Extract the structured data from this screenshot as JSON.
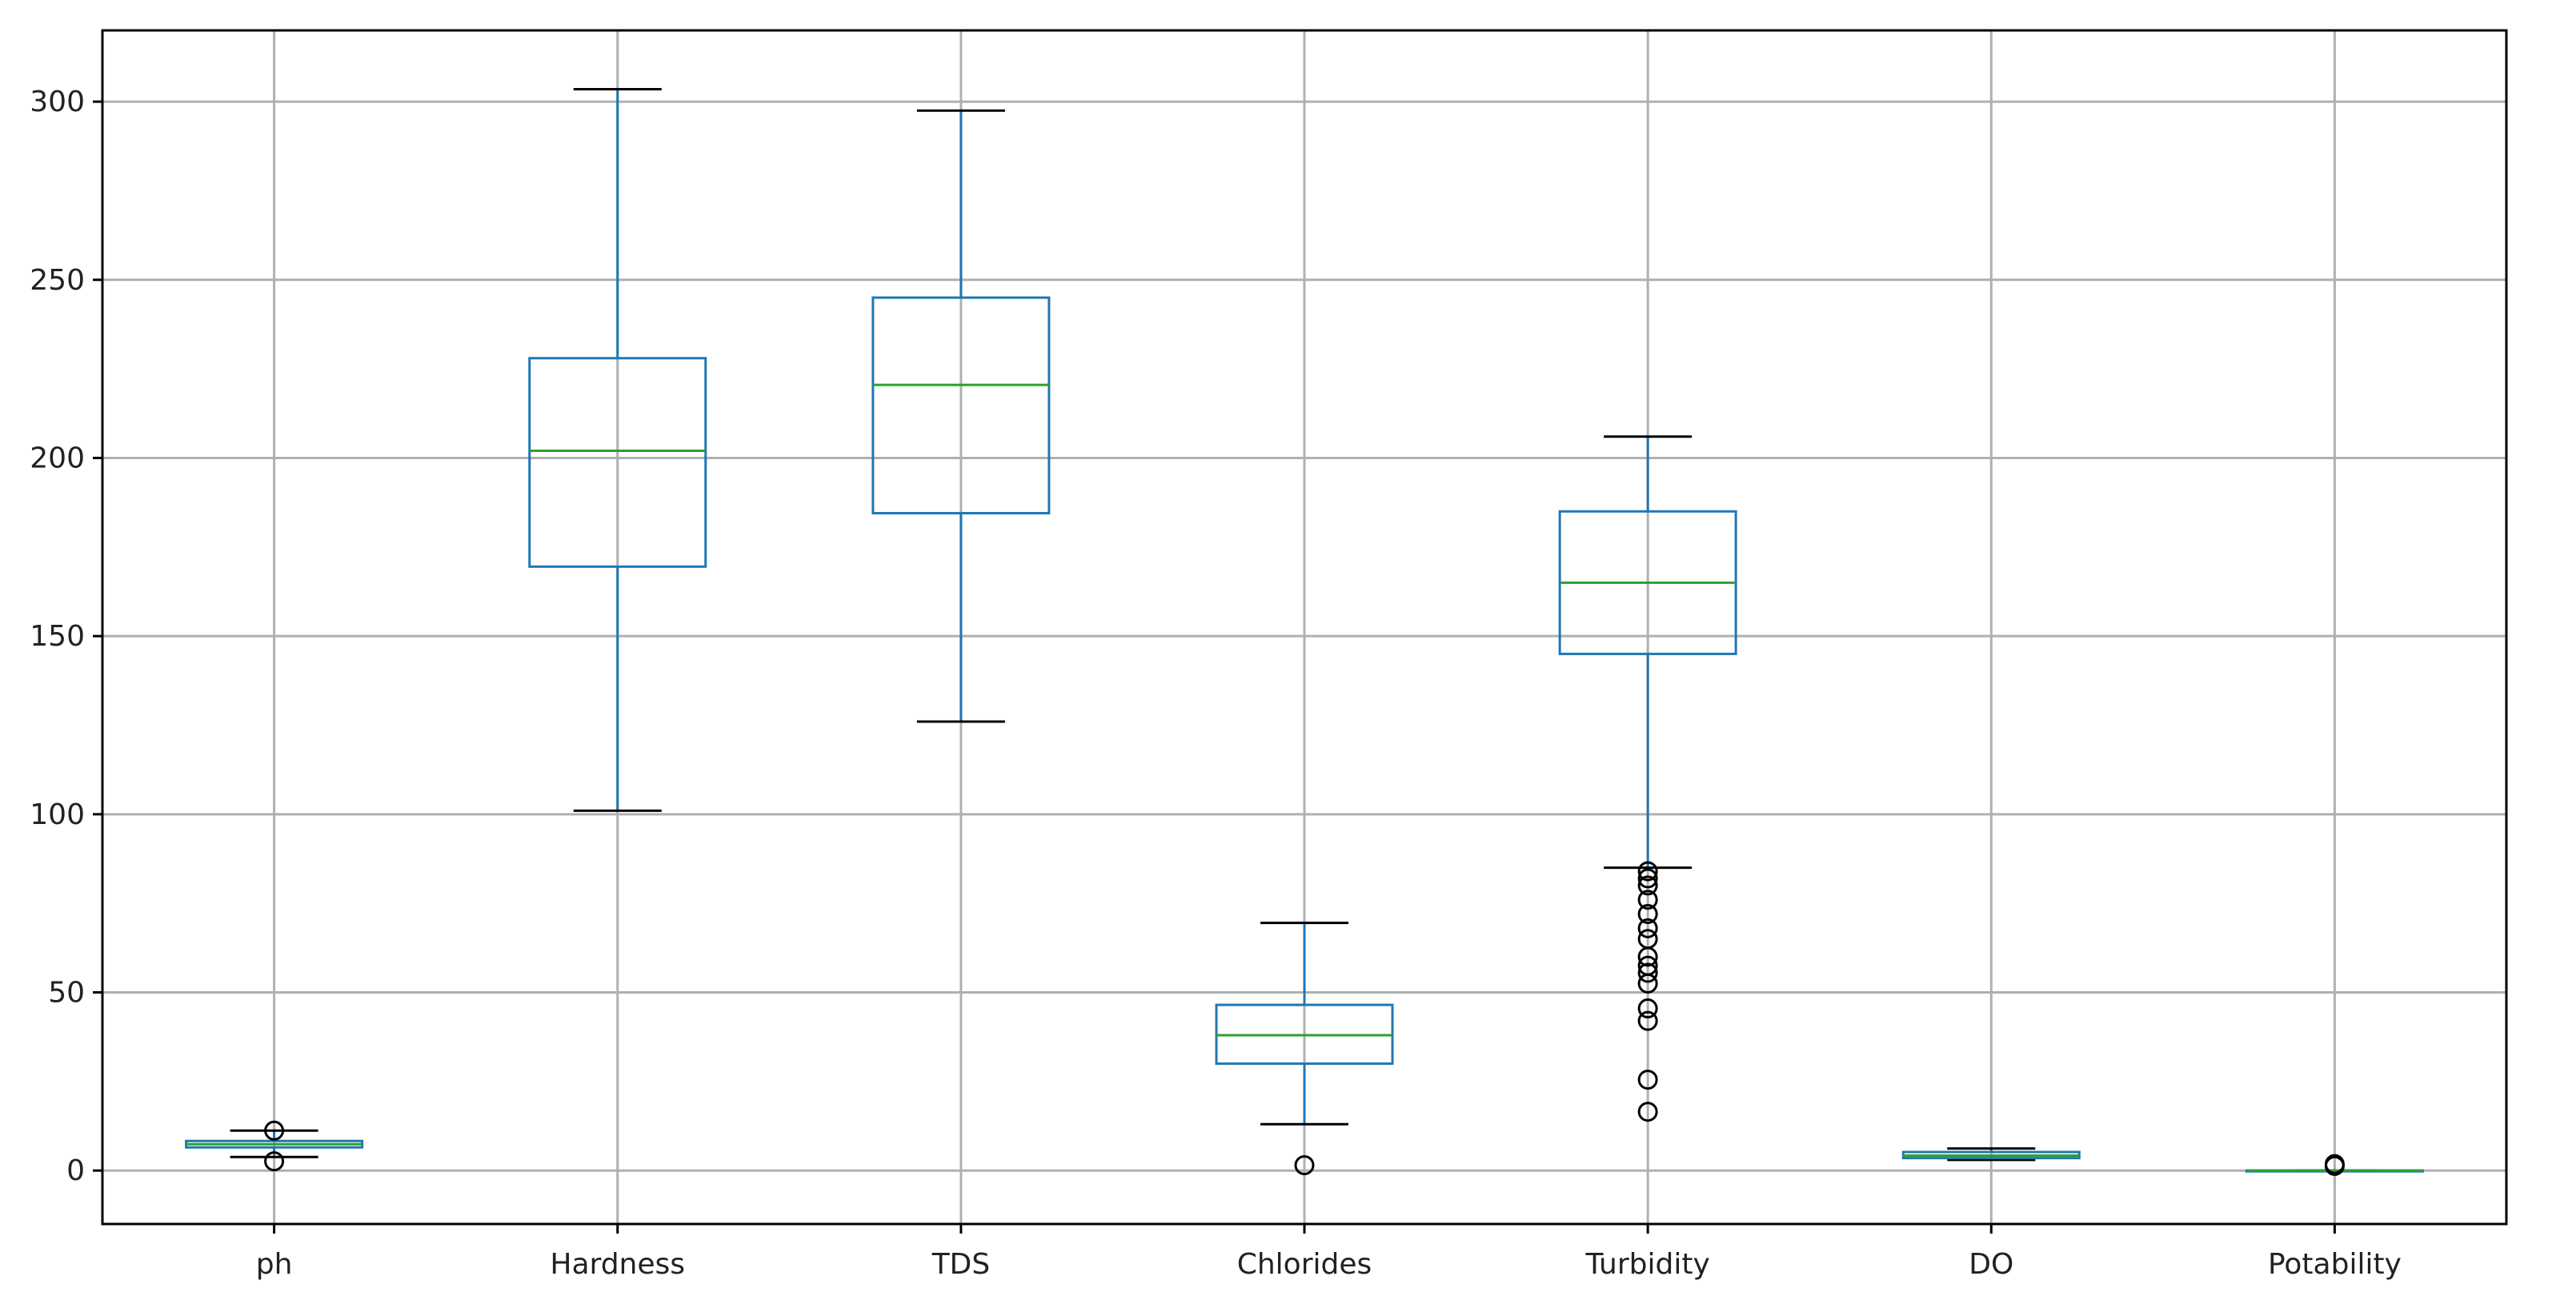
{
  "chart_data": {
    "type": "boxplot",
    "title": "",
    "xlabel": "",
    "ylabel": "",
    "ylim": [
      -15,
      320
    ],
    "yticks": [
      0,
      50,
      100,
      150,
      200,
      250,
      300
    ],
    "grid": true,
    "categories": [
      "ph",
      "Hardness",
      "TDS",
      "Chlorides",
      "Turbidity",
      "DO",
      "Potability"
    ],
    "boxes": [
      {
        "name": "ph",
        "whisker_low": 3.8,
        "q1": 6.5,
        "median": 7.4,
        "q3": 8.3,
        "whisker_high": 11.2,
        "outliers": [
          2.6,
          11.2
        ]
      },
      {
        "name": "Hardness",
        "whisker_low": 101,
        "q1": 169.5,
        "median": 202,
        "q3": 228,
        "whisker_high": 303.5,
        "outliers": []
      },
      {
        "name": "TDS",
        "whisker_low": 126,
        "q1": 184.5,
        "median": 220.5,
        "q3": 245,
        "whisker_high": 297.5,
        "outliers": []
      },
      {
        "name": "Chlorides",
        "whisker_low": 13,
        "q1": 30,
        "median": 38,
        "q3": 46.5,
        "whisker_high": 69.5,
        "outliers": [
          1.5
        ]
      },
      {
        "name": "Turbidity",
        "whisker_low": 85,
        "q1": 145,
        "median": 165,
        "q3": 185,
        "whisker_high": 206,
        "outliers": [
          16.5,
          25.5,
          42,
          45.5,
          52.5,
          55.5,
          57.5,
          60,
          65,
          68,
          72,
          76,
          80,
          82,
          84
        ]
      },
      {
        "name": "DO",
        "whisker_low": 3,
        "q1": 3.5,
        "median": 4.2,
        "q3": 5.2,
        "whisker_high": 6.2,
        "outliers": []
      },
      {
        "name": "Potability",
        "whisker_low": 0,
        "q1": 0,
        "median": 0,
        "q3": 0,
        "whisker_high": 0,
        "outliers": [
          1.3,
          1.8
        ]
      }
    ],
    "colors": {
      "box": "#1f77b4",
      "median": "#2ca02c",
      "whisker_cap": "#000000",
      "grid": "#b0b0b0",
      "axes": "#000000",
      "outlier": "#000000"
    }
  }
}
